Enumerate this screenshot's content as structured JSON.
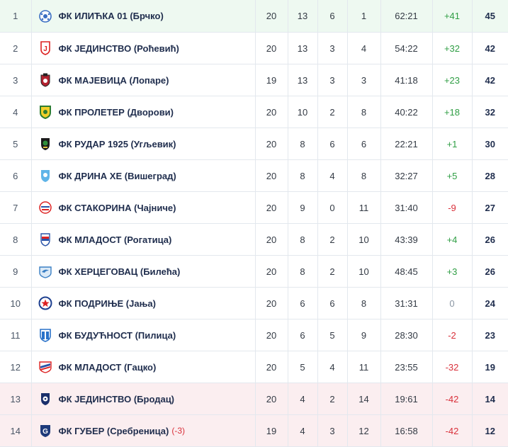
{
  "standings": [
    {
      "pos": "1",
      "team": "ФК ИЛИЋКА 01 (Брчко)",
      "penalty": "",
      "played": "20",
      "won": "13",
      "drawn": "6",
      "lost": "1",
      "goals": "62:21",
      "gd": "+41",
      "pts": "45",
      "zone": "promo",
      "crest": "ball"
    },
    {
      "pos": "2",
      "team": "ФК ЈЕДИНСТВО (Роћевић)",
      "penalty": "",
      "played": "20",
      "won": "13",
      "drawn": "3",
      "lost": "4",
      "goals": "54:22",
      "gd": "+32",
      "pts": "42",
      "zone": "",
      "crest": "red-j"
    },
    {
      "pos": "3",
      "team": "ФК МАЈЕВИЦА (Лопаре)",
      "penalty": "",
      "played": "19",
      "won": "13",
      "drawn": "3",
      "lost": "3",
      "goals": "41:18",
      "gd": "+23",
      "pts": "42",
      "zone": "",
      "crest": "red-shield"
    },
    {
      "pos": "4",
      "team": "ФК ПРОЛЕТЕР (Дворови)",
      "penalty": "",
      "played": "20",
      "won": "10",
      "drawn": "2",
      "lost": "8",
      "goals": "40:22",
      "gd": "+18",
      "pts": "32",
      "zone": "",
      "crest": "green-yellow"
    },
    {
      "pos": "5",
      "team": "ФК РУДАР 1925 (Угљевик)",
      "penalty": "",
      "played": "20",
      "won": "8",
      "drawn": "6",
      "lost": "6",
      "goals": "22:21",
      "gd": "+1",
      "pts": "30",
      "zone": "",
      "crest": "black-green"
    },
    {
      "pos": "6",
      "team": "ФК ДРИНА ХЕ (Вишеград)",
      "penalty": "",
      "played": "20",
      "won": "8",
      "drawn": "4",
      "lost": "8",
      "goals": "32:27",
      "gd": "+5",
      "pts": "28",
      "zone": "",
      "crest": "light-blue"
    },
    {
      "pos": "7",
      "team": "ФК СТАКОРИНА (Чајниче)",
      "penalty": "",
      "played": "20",
      "won": "9",
      "drawn": "0",
      "lost": "11",
      "goals": "31:40",
      "gd": "-9",
      "pts": "27",
      "zone": "",
      "crest": "tricolor"
    },
    {
      "pos": "8",
      "team": "ФК МЛАДОСТ (Рогатица)",
      "penalty": "",
      "played": "20",
      "won": "8",
      "drawn": "2",
      "lost": "10",
      "goals": "43:39",
      "gd": "+4",
      "pts": "26",
      "zone": "",
      "crest": "tricolor-shield"
    },
    {
      "pos": "9",
      "team": "ФК ХЕРЦЕГОВАЦ (Билећа)",
      "penalty": "",
      "played": "20",
      "won": "8",
      "drawn": "2",
      "lost": "10",
      "goals": "48:45",
      "gd": "+3",
      "pts": "26",
      "zone": "",
      "crest": "blue-bird"
    },
    {
      "pos": "10",
      "team": "ФК ПОДРИЊЕ (Јања)",
      "penalty": "",
      "played": "20",
      "won": "6",
      "drawn": "6",
      "lost": "8",
      "goals": "31:31",
      "gd": "0",
      "pts": "24",
      "zone": "",
      "crest": "blue-star"
    },
    {
      "pos": "11",
      "team": "ФК БУДУЋНОСТ (Пилица)",
      "penalty": "",
      "played": "20",
      "won": "6",
      "drawn": "5",
      "lost": "9",
      "goals": "28:30",
      "gd": "-2",
      "pts": "23",
      "zone": "",
      "crest": "blue-white"
    },
    {
      "pos": "12",
      "team": "ФК МЛАДОСТ (Гацко)",
      "penalty": "",
      "played": "20",
      "won": "5",
      "drawn": "4",
      "lost": "11",
      "goals": "23:55",
      "gd": "-32",
      "pts": "19",
      "zone": "",
      "crest": "red-blue-stripe"
    },
    {
      "pos": "13",
      "team": "ФК ЈЕДИНСТВО (Бродац)",
      "penalty": "",
      "played": "20",
      "won": "4",
      "drawn": "2",
      "lost": "14",
      "goals": "19:61",
      "gd": "-42",
      "pts": "14",
      "zone": "releg",
      "crest": "navy-ball"
    },
    {
      "pos": "14",
      "team": "ФК ГУБЕР (Сребреница)",
      "penalty": "(-3)",
      "played": "19",
      "won": "4",
      "drawn": "3",
      "lost": "12",
      "goals": "16:58",
      "gd": "-42",
      "pts": "12",
      "zone": "releg",
      "crest": "navy-g"
    }
  ]
}
